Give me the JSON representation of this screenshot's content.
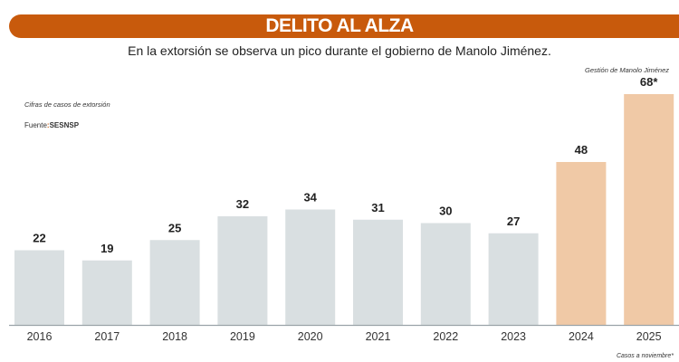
{
  "header": {
    "title": "DELITO AL ALZA",
    "subtitle": "En la extorsión se observa un pico durante el gobierno de Manolo Jiménez."
  },
  "notes": {
    "units": "Cifras de casos de extorsión",
    "source_label": "Fuente",
    "source_sep": ":",
    "source": "SESNSP",
    "period_label": "Gestión de Manolo Jiménez",
    "footnote": "Casos a noviembre*"
  },
  "colors": {
    "banner": "#c85a0c",
    "bar_default": "#d9dfe1",
    "bar_highlight": "#f0c9a6"
  },
  "chart_data": {
    "type": "bar",
    "categories": [
      "2016",
      "2017",
      "2018",
      "2019",
      "2020",
      "2021",
      "2022",
      "2023",
      "2024",
      "2025"
    ],
    "values": [
      22,
      19,
      25,
      32,
      34,
      31,
      30,
      27,
      48,
      68
    ],
    "data_labels": [
      "22",
      "19",
      "25",
      "32",
      "34",
      "31",
      "30",
      "27",
      "48",
      "68*"
    ],
    "highlighted": [
      "2024",
      "2025"
    ],
    "title": "DELITO AL ALZA",
    "ylim": [
      0,
      68
    ],
    "grid": false
  }
}
